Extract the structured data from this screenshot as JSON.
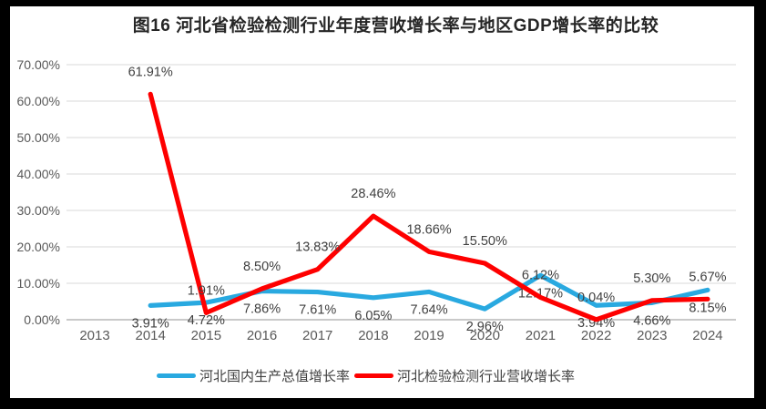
{
  "title": "图16 河北省检验检测行业年度营收增长率与地区GDP增长率的比较",
  "chart_data": {
    "type": "line",
    "title": "图16 河北省检验检测行业年度营收增长率与地区GDP增长率的比较",
    "categories": [
      "2013",
      "2014",
      "2015",
      "2016",
      "2017",
      "2018",
      "2019",
      "2020",
      "2021",
      "2022",
      "2023",
      "2024"
    ],
    "series": [
      {
        "name": "河北国内生产总值增长率",
        "color": "#29A9E0",
        "label_position": "below",
        "values": [
          null,
          3.91,
          4.72,
          7.86,
          7.61,
          6.05,
          7.64,
          2.96,
          12.17,
          3.94,
          4.66,
          8.15
        ]
      },
      {
        "name": "河北检验检测行业营收增长率",
        "color": "#FE0000",
        "label_position": "above",
        "values": [
          null,
          61.91,
          1.91,
          8.5,
          13.83,
          28.46,
          18.66,
          15.5,
          6.12,
          0.04,
          5.3,
          5.67
        ]
      }
    ],
    "ylim": [
      0,
      70
    ],
    "ytick_step": 10,
    "ytick_labels": [
      "0.00%",
      "10.00%",
      "20.00%",
      "30.00%",
      "40.00%",
      "50.00%",
      "60.00%",
      "70.00%"
    ],
    "grid": "horizontal",
    "legend_position": "bottom",
    "xlabel": "",
    "ylabel": ""
  },
  "colors": {
    "grid": "#d9d9d9",
    "axis": "#b7b7b7",
    "tick_text": "#595959",
    "data_label": "#404040",
    "title_text": "#262626",
    "frame": "#000000",
    "chart_background": "#ffffff"
  }
}
